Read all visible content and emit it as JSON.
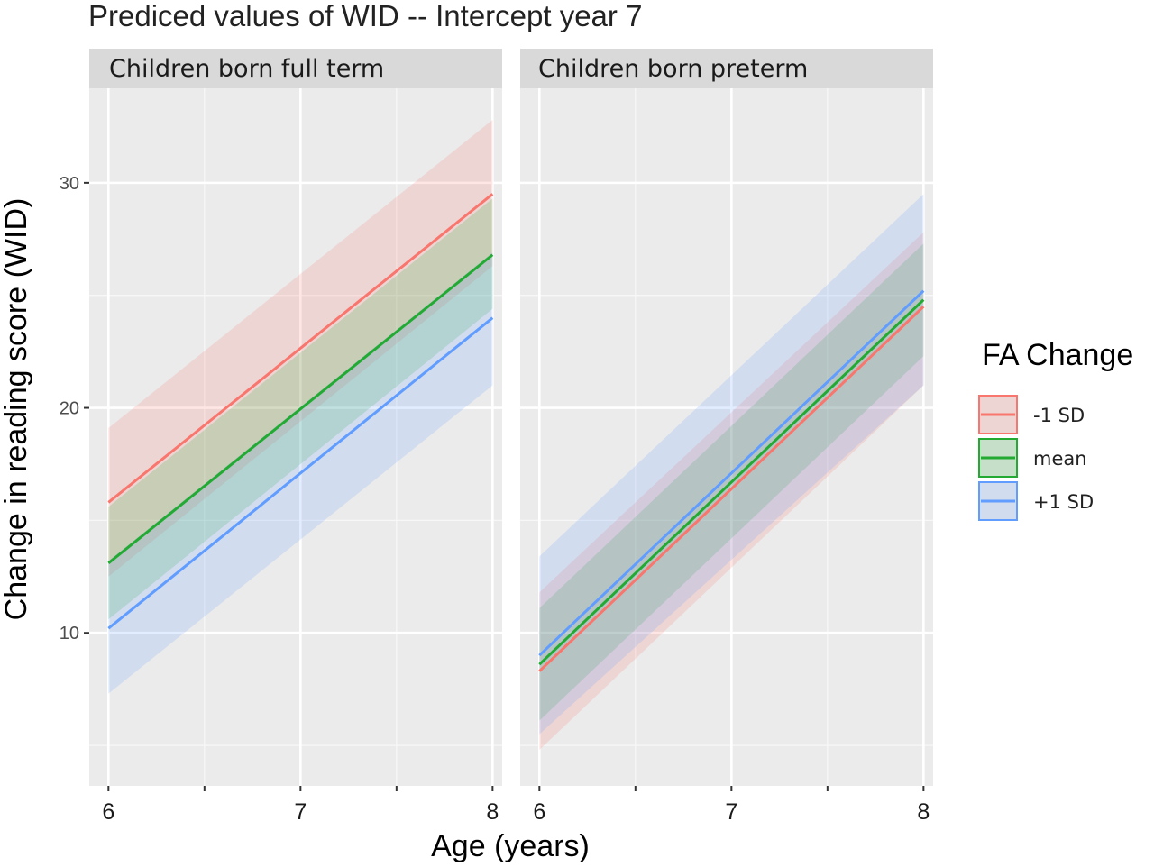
{
  "chart_data": {
    "type": "line",
    "title": "Prediced values of WID -- Intercept year 7",
    "xlabel": "Age (years)",
    "ylabel": "Change in reading score (WID)",
    "xlim": [
      5.9,
      8.05
    ],
    "ylim": [
      3.2,
      34.2
    ],
    "x_ticks": [
      6,
      7,
      8
    ],
    "x_tick_labels": [
      "6",
      "7",
      "8"
    ],
    "x_minor_ticks": [
      6.5,
      7.5
    ],
    "y_ticks": [
      10,
      20,
      30
    ],
    "y_tick_labels": [
      "10",
      "20",
      "30"
    ],
    "y_minor_ticks": [
      5,
      15,
      25
    ],
    "grid": true,
    "legend": {
      "title": "FA Change",
      "position": "right",
      "labels": [
        "-1 SD",
        "mean",
        "+1 SD"
      ]
    },
    "colors": {
      "-1 SD": "#F8766D",
      "mean": "#22AA33",
      "+1 SD": "#619CFF"
    },
    "panels": [
      {
        "strip": "Children born full term",
        "series": [
          {
            "name": "-1 SD",
            "x": [
              6,
              8
            ],
            "y": [
              15.8,
              29.5
            ],
            "lower": [
              12.5,
              26.3
            ],
            "upper": [
              19.1,
              32.8
            ]
          },
          {
            "name": "mean",
            "x": [
              6,
              8
            ],
            "y": [
              13.1,
              26.8
            ],
            "lower": [
              10.6,
              24.4
            ],
            "upper": [
              15.6,
              29.3
            ]
          },
          {
            "name": "+1 SD",
            "x": [
              6,
              8
            ],
            "y": [
              10.2,
              24.0
            ],
            "lower": [
              7.3,
              21.0
            ],
            "upper": [
              13.2,
              26.9
            ]
          }
        ]
      },
      {
        "strip": "Children born preterm",
        "series": [
          {
            "name": "-1 SD",
            "x": [
              6,
              8
            ],
            "y": [
              8.3,
              24.5
            ],
            "lower": [
              4.8,
              21.0
            ],
            "upper": [
              11.8,
              27.8
            ]
          },
          {
            "name": "mean",
            "x": [
              6,
              8
            ],
            "y": [
              8.6,
              24.8
            ],
            "lower": [
              6.1,
              22.3
            ],
            "upper": [
              11.1,
              27.3
            ]
          },
          {
            "name": "+1 SD",
            "x": [
              6,
              8
            ],
            "y": [
              9.0,
              25.2
            ],
            "lower": [
              5.5,
              21.0
            ],
            "upper": [
              13.4,
              29.5
            ]
          }
        ]
      }
    ]
  }
}
